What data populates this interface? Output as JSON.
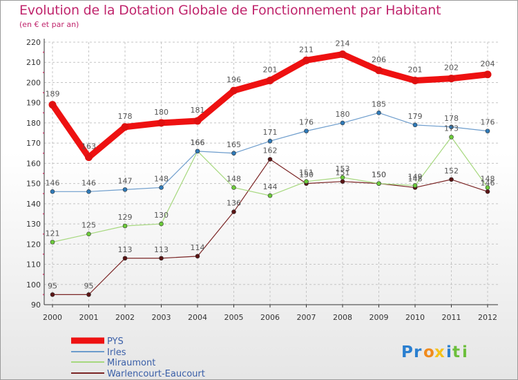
{
  "chart_data": {
    "type": "line",
    "title": "Evolution de la Dotation Globale de Fonctionnement par Habitant",
    "subtitle": "(en € et par an)",
    "xlabel": "",
    "ylabel": "",
    "ylim": [
      90,
      220
    ],
    "yticks": [
      90,
      100,
      110,
      120,
      130,
      140,
      150,
      160,
      170,
      180,
      190,
      200,
      210,
      220
    ],
    "grid": true,
    "legend_position": "bottom-left",
    "categories": [
      "2000",
      "2001",
      "2002",
      "2003",
      "2004",
      "2005",
      "2006",
      "2007",
      "2008",
      "2009",
      "2010",
      "2011",
      "2012"
    ],
    "series": [
      {
        "name": "PYS",
        "color": "#ee1111",
        "values": [
          189,
          163,
          178,
          180,
          181,
          196,
          201,
          211,
          214,
          206,
          201,
          202,
          204
        ]
      },
      {
        "name": "Irles",
        "color": "#6c9ccc",
        "values": [
          146,
          146,
          147,
          148,
          166,
          165,
          171,
          176,
          180,
          185,
          179,
          178,
          176
        ]
      },
      {
        "name": "Miraumont",
        "color": "#a6d87e",
        "values": [
          121,
          125,
          129,
          130,
          166,
          148,
          144,
          151,
          153,
          150,
          149,
          173,
          148
        ]
      },
      {
        "name": "Warlencourt-Eaucourt",
        "color": "#7a2424",
        "values": [
          95,
          95,
          113,
          113,
          114,
          136,
          162,
          150,
          151,
          150,
          148,
          152,
          146
        ]
      }
    ]
  },
  "logo": {
    "text": "Prox⚹iti",
    "letters": [
      "P",
      "r",
      "o",
      "x",
      "i",
      "t",
      "i"
    ]
  }
}
